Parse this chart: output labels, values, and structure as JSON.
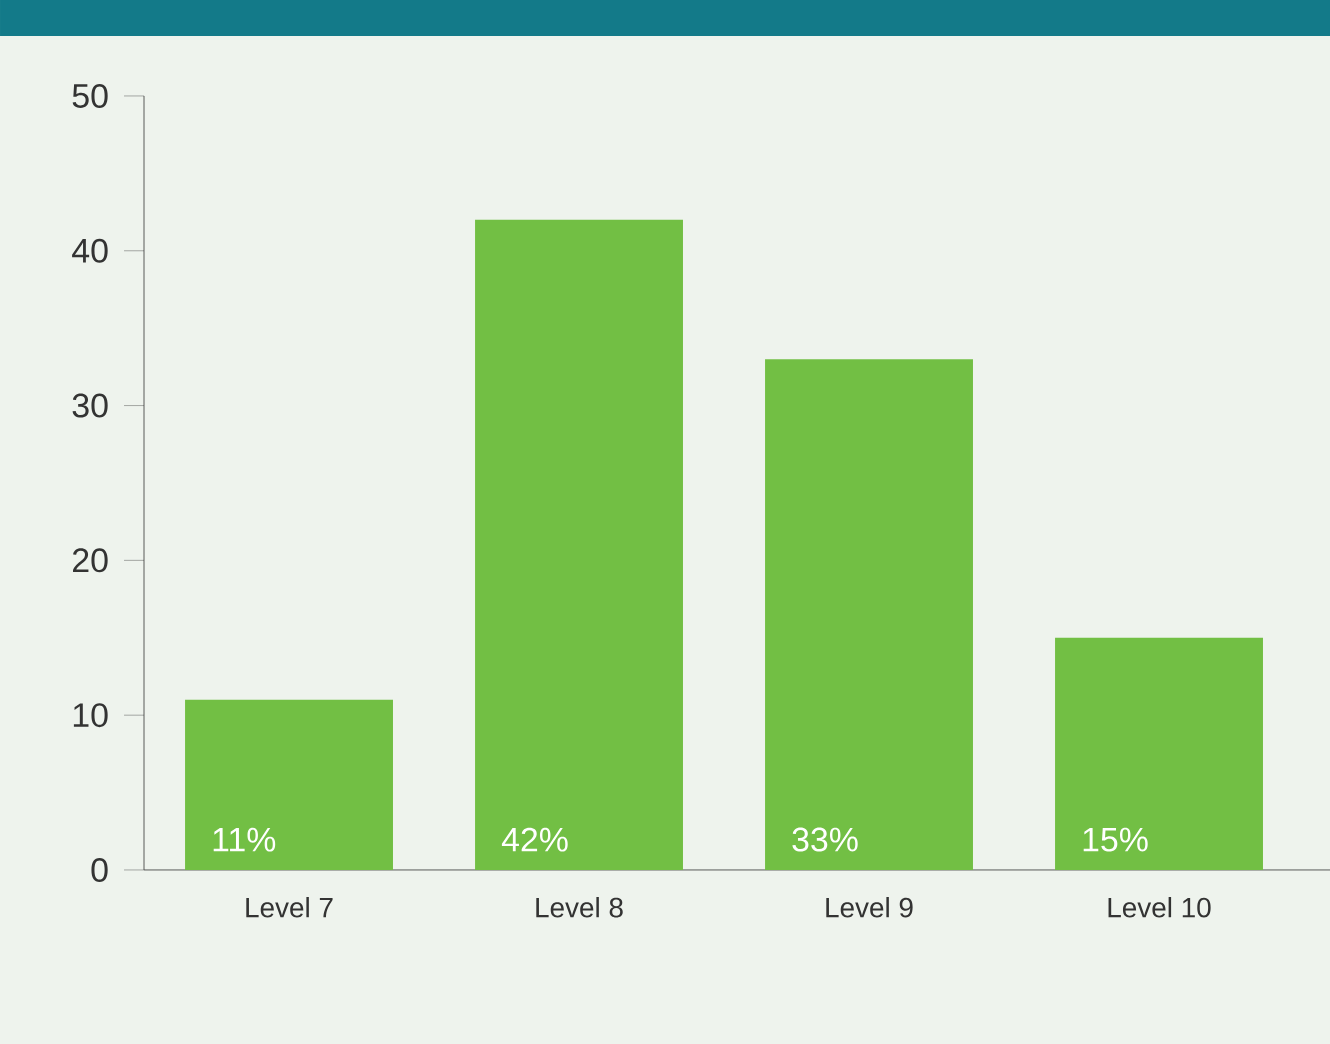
{
  "chart_data": {
    "type": "bar",
    "categories": [
      "Level 7",
      "Level 8",
      "Level 9",
      "Level 10"
    ],
    "values": [
      11,
      42,
      33,
      15
    ],
    "value_labels": [
      "11%",
      "42%",
      "33%",
      "15%"
    ],
    "color": "#72bf44",
    "ylim": [
      0,
      50
    ],
    "yticks": [
      0,
      10,
      20,
      30,
      40,
      50
    ]
  }
}
